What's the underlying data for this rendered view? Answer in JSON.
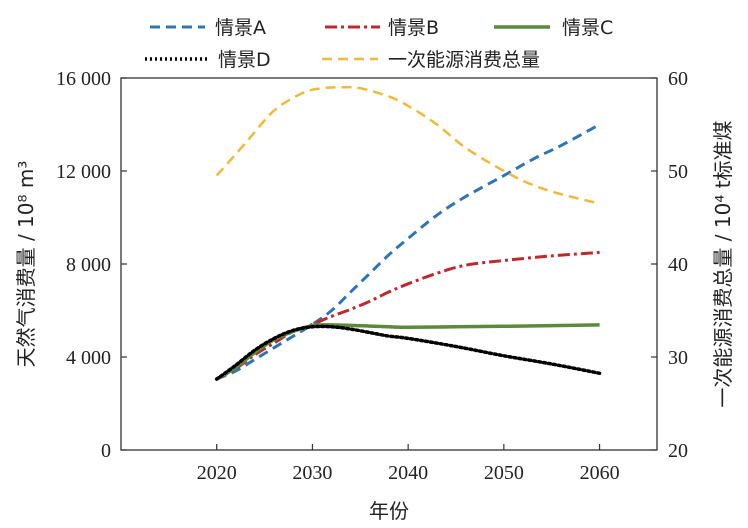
{
  "chart_data": {
    "type": "line",
    "xlabel": "年份",
    "ylabel_left": "天然气消费量 / 10⁸ m³",
    "ylabel_right": "一次能源消费总量 / 10⁴ t标准煤",
    "xlim": [
      2010,
      2066
    ],
    "ylim_left": [
      0,
      16000
    ],
    "ylim_right": [
      20,
      60
    ],
    "x_ticks": [
      2020,
      2030,
      2040,
      2050,
      2060
    ],
    "y_left_ticks": [
      0,
      4000,
      8000,
      12000,
      16000
    ],
    "y_left_tick_labels": [
      "0",
      "4 000",
      "8 000",
      "12 000",
      "16 000"
    ],
    "y_right_ticks": [
      20,
      30,
      40,
      50,
      60
    ],
    "y_right_tick_labels": [
      "20",
      "30",
      "40",
      "50",
      "60"
    ],
    "grid": false,
    "legend_position": "top",
    "series": [
      {
        "name": "情景A",
        "axis": "left",
        "color": "#2e75b6",
        "style": "dashed",
        "x": [
          2020,
          2022,
          2024,
          2026,
          2028,
          2030,
          2032,
          2034,
          2036,
          2038,
          2040,
          2043,
          2046,
          2050,
          2053,
          2056,
          2060
        ],
        "y": [
          3050,
          3400,
          3900,
          4400,
          4900,
          5400,
          6000,
          6800,
          7600,
          8400,
          9100,
          10100,
          10900,
          11800,
          12500,
          13100,
          14000
        ]
      },
      {
        "name": "情景B",
        "axis": "left",
        "color": "#c0282d",
        "style": "dashdot",
        "x": [
          2020,
          2022,
          2024,
          2026,
          2028,
          2030,
          2032,
          2034,
          2036,
          2038,
          2040,
          2043,
          2046,
          2050,
          2055,
          2060
        ],
        "y": [
          3050,
          3500,
          4100,
          4600,
          5100,
          5400,
          5750,
          6050,
          6400,
          6800,
          7150,
          7600,
          7950,
          8150,
          8350,
          8500
        ]
      },
      {
        "name": "情景C",
        "axis": "left",
        "color": "#5b8a3a",
        "style": "solid",
        "x": [
          2020,
          2022,
          2024,
          2026,
          2028,
          2030,
          2032,
          2034,
          2036,
          2038,
          2040,
          2045,
          2050,
          2055,
          2060
        ],
        "y": [
          3050,
          3550,
          4200,
          4750,
          5100,
          5350,
          5380,
          5360,
          5330,
          5300,
          5280,
          5300,
          5320,
          5350,
          5380
        ]
      },
      {
        "name": "情景D",
        "axis": "left",
        "color": "#000000",
        "style": "dotted",
        "x": [
          2020,
          2022,
          2024,
          2026,
          2028,
          2030,
          2032,
          2034,
          2036,
          2038,
          2040,
          2045,
          2050,
          2055,
          2060
        ],
        "y": [
          3050,
          3650,
          4300,
          4800,
          5150,
          5300,
          5300,
          5200,
          5050,
          4900,
          4800,
          4450,
          4050,
          3700,
          3300
        ]
      },
      {
        "name": "一次能源消费总量",
        "axis": "right",
        "color": "#f0b93a",
        "style": "dashed",
        "x": [
          2020,
          2023,
          2026,
          2029,
          2031,
          2033,
          2035,
          2038,
          2040,
          2043,
          2046,
          2050,
          2053,
          2056,
          2060
        ],
        "y": [
          49.5,
          53.0,
          56.5,
          58.4,
          58.9,
          59.0,
          58.9,
          58.0,
          57.0,
          55.0,
          52.5,
          50.0,
          48.5,
          47.5,
          46.5
        ]
      }
    ]
  }
}
